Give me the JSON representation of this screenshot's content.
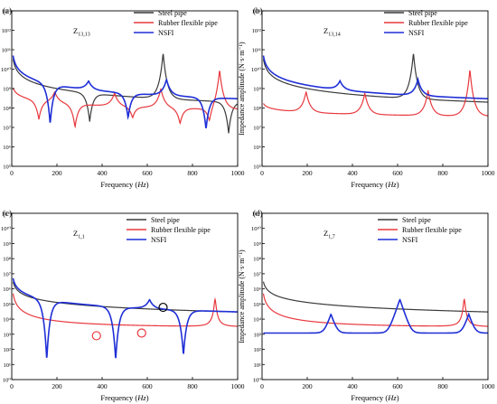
{
  "figure": {
    "legend": [
      "Steel pipe",
      "Rubber flexible pipe",
      "NSFI"
    ],
    "colors": {
      "steel": "#3a3a3a",
      "rubber": "#e8383d",
      "nsfi": "#1f2fd6"
    },
    "xlabel_prefix": "Frequency (",
    "xlabel_unit": "Hz",
    "xlabel_suffix": ")",
    "ylabel": "Impedance amplitude (N·s·m⁻¹)"
  },
  "chart_data": [
    {
      "panel_label": "(a)",
      "inner_label": "Z",
      "inner_label_sub": "13,13",
      "type": "line",
      "x_range": [
        0,
        1000
      ],
      "y_scale": "log",
      "y_exponent_range": [
        5,
        13
      ],
      "xticks": [
        "0",
        "200",
        "400",
        "600",
        "800",
        "1000"
      ],
      "yticks": [
        "10⁵",
        "10⁶",
        "10⁷",
        "10⁸",
        "10⁹",
        "10¹⁰",
        "10¹¹",
        "10¹²",
        "10¹³"
      ],
      "legend_position": "top-right",
      "series": [
        {
          "name": "Steel pipe",
          "type": "resonance",
          "base": 10000000000.0,
          "slope": 1.0,
          "peaks": [
            670
          ],
          "peak_levels": [
            70000000000.0
          ],
          "anti": [
            345,
            960
          ],
          "anti_levels": [
            20000000.0,
            5000000.0
          ]
        },
        {
          "name": "Rubber flexible pipe",
          "type": "resonance",
          "base": 600000000.0,
          "slope": 0.5,
          "peaks": [
            190,
            455,
            660,
            920
          ],
          "peak_levels": [
            700000000.0,
            600000000.0,
            1000000000.0,
            10000000000.0
          ],
          "anti": [
            120,
            280,
            535,
            745,
            875
          ],
          "anti_levels": [
            25000000.0,
            10000000.0,
            30000000.0,
            15000000.0,
            15000000.0
          ]
        },
        {
          "name": "NSFI",
          "type": "resonance",
          "base": 15000000000.0,
          "slope": 1.0,
          "peaks": [
            340,
            685
          ],
          "peak_levels": [
            2500000000.0,
            3000000000.0
          ],
          "anti": [
            170,
            515,
            860
          ],
          "anti_levels": [
            15000000.0,
            30000000.0,
            8000000.0
          ]
        }
      ]
    },
    {
      "panel_label": "(b)",
      "inner_label": "Z",
      "inner_label_sub": "13,14",
      "type": "line",
      "x_range": [
        0,
        1000
      ],
      "y_scale": "log",
      "y_exponent_range": [
        5,
        13
      ],
      "xticks": [
        "0",
        "200",
        "400",
        "600",
        "800",
        "1000"
      ],
      "yticks": [
        "10⁵",
        "10⁶",
        "10⁷",
        "10⁸",
        "10⁹",
        "10¹⁰",
        "10¹¹",
        "10¹²",
        "10¹³"
      ],
      "legend_position": "top-right",
      "series": [
        {
          "name": "Steel pipe",
          "type": "resonance",
          "base": 10000000000.0,
          "slope": 1.0,
          "peaks": [
            670
          ],
          "peak_levels": [
            70000000000.0
          ],
          "anti": [],
          "anti_levels": []
        },
        {
          "name": "Rubber flexible pipe",
          "type": "resonance",
          "base": 120000000.0,
          "slope": 0.3,
          "peaks": [
            195,
            455,
            735,
            920
          ],
          "peak_levels": [
            700000000.0,
            600000000.0,
            800000000.0,
            10000000000.0
          ],
          "anti": [],
          "anti_levels": []
        },
        {
          "name": "NSFI",
          "type": "resonance",
          "base": 15000000000.0,
          "slope": 1.0,
          "peaks": [
            345,
            690
          ],
          "peak_levels": [
            2500000000.0,
            3000000000.0
          ],
          "anti": [],
          "anti_levels": []
        }
      ]
    },
    {
      "panel_label": "(c)",
      "inner_label": "Z",
      "inner_label_sub": "1,1",
      "type": "line",
      "x_range": [
        0,
        1000
      ],
      "y_scale": "log",
      "y_exponent_range": [
        0,
        11
      ],
      "xticks": [
        "0",
        "200",
        "400",
        "600",
        "800",
        "1000"
      ],
      "yticks": [
        "10⁰",
        "10¹",
        "10²",
        "10³",
        "10⁴",
        "10⁵",
        "10⁶",
        "10⁷",
        "10⁸",
        "10⁹",
        "10¹⁰",
        "10¹¹"
      ],
      "legend_position": "top-right",
      "markers": [
        {
          "x": 670,
          "y": 60000.0,
          "color": "black"
        },
        {
          "x": 375,
          "y": 800.0,
          "color": "red"
        },
        {
          "x": 575,
          "y": 1200.0,
          "color": "red"
        }
      ],
      "series": [
        {
          "name": "Steel pipe",
          "type": "decay",
          "A": 15000000.0,
          "exp": 0.9,
          "floor": 0,
          "peaks": [],
          "peak_levels": []
        },
        {
          "name": "Rubber flexible pipe",
          "type": "decay",
          "A": 5000000.0,
          "exp": 1.3,
          "floor": 2500.0,
          "peaks": [
            900
          ],
          "peak_levels": [
            200000.0
          ]
        },
        {
          "name": "NSFI",
          "type": "resonance",
          "base": 1500000.0,
          "slope": 1.0,
          "peaks": [
            305,
            610,
            915
          ],
          "peak_levels": [
            20000.0,
            200000.0,
            20000.0
          ],
          "anti": [
            155,
            460,
            760
          ],
          "anti_levels": [
            20,
            20,
            40
          ]
        }
      ]
    },
    {
      "panel_label": "(d)",
      "inner_label": "Z",
      "inner_label_sub": "1,7",
      "type": "line",
      "x_range": [
        0,
        1000
      ],
      "y_scale": "log",
      "y_exponent_range": [
        0,
        11
      ],
      "xticks": [
        "0",
        "200",
        "400",
        "600",
        "800",
        "1000"
      ],
      "yticks": [
        "10⁰",
        "10¹",
        "10²",
        "10³",
        "10⁴",
        "10⁵",
        "10⁶",
        "10⁷",
        "10⁸",
        "10⁹",
        "10¹⁰",
        "10¹¹"
      ],
      "legend_position": "top-right",
      "series": [
        {
          "name": "Steel pipe",
          "type": "decay",
          "A": 15000000.0,
          "exp": 0.9,
          "floor": 0,
          "peaks": [],
          "peak_levels": []
        },
        {
          "name": "Rubber flexible pipe",
          "type": "decay",
          "A": 5000000.0,
          "exp": 1.3,
          "floor": 2500.0,
          "peaks": [
            895
          ],
          "peak_levels": [
            200000.0
          ]
        },
        {
          "name": "NSFI",
          "type": "plateau",
          "base": 1200.0,
          "peaks": [
            305,
            610,
            915
          ],
          "peak_levels": [
            20000.0,
            200000.0,
            20000.0
          ]
        }
      ]
    }
  ]
}
